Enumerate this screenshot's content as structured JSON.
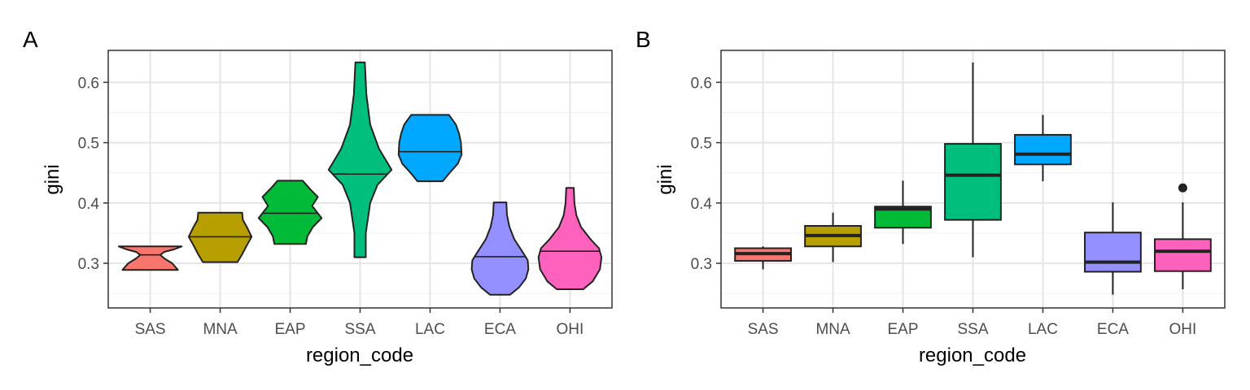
{
  "chart_data": [
    {
      "tag": "A",
      "type": "violin",
      "xlabel": "region_code",
      "ylabel": "gini",
      "categories": [
        "SAS",
        "MNA",
        "EAP",
        "SSA",
        "LAC",
        "ECA",
        "OHI"
      ],
      "yticks": [
        "0.3",
        "0.4",
        "0.5",
        "0.6"
      ],
      "ylim": [
        0.226,
        0.653
      ],
      "grid": true,
      "violins": [
        {
          "category": "SAS",
          "color": "#F8766D",
          "median": 0.314,
          "profile": [
            [
              0.289,
              0.88
            ],
            [
              0.3,
              0.7
            ],
            [
              0.308,
              0.45
            ],
            [
              0.314,
              0.32
            ],
            [
              0.319,
              0.45
            ],
            [
              0.323,
              0.75
            ],
            [
              0.328,
              1.0
            ]
          ]
        },
        {
          "category": "MNA",
          "color": "#B79F00",
          "median": 0.344,
          "profile": [
            [
              0.302,
              0.55
            ],
            [
              0.315,
              0.7
            ],
            [
              0.33,
              0.85
            ],
            [
              0.344,
              1.0
            ],
            [
              0.36,
              0.85
            ],
            [
              0.372,
              0.72
            ],
            [
              0.384,
              0.7
            ]
          ]
        },
        {
          "category": "EAP",
          "color": "#00BA38",
          "median": 0.383,
          "profile": [
            [
              0.332,
              0.5
            ],
            [
              0.345,
              0.55
            ],
            [
              0.36,
              0.72
            ],
            [
              0.375,
              1.0
            ],
            [
              0.385,
              0.85
            ],
            [
              0.395,
              0.7
            ],
            [
              0.41,
              0.88
            ],
            [
              0.425,
              0.6
            ],
            [
              0.437,
              0.4
            ]
          ]
        },
        {
          "category": "SSA",
          "color": "#00BF7D",
          "median": 0.448,
          "profile": [
            [
              0.31,
              0.18
            ],
            [
              0.35,
              0.18
            ],
            [
              0.4,
              0.32
            ],
            [
              0.43,
              0.55
            ],
            [
              0.455,
              1.0
            ],
            [
              0.49,
              0.6
            ],
            [
              0.53,
              0.32
            ],
            [
              0.58,
              0.2
            ],
            [
              0.633,
              0.15
            ]
          ]
        },
        {
          "category": "LAC",
          "color": "#00A9FF",
          "median": 0.485,
          "profile": [
            [
              0.436,
              0.4
            ],
            [
              0.45,
              0.62
            ],
            [
              0.465,
              0.88
            ],
            [
              0.48,
              1.0
            ],
            [
              0.5,
              0.98
            ],
            [
              0.515,
              0.92
            ],
            [
              0.53,
              0.82
            ],
            [
              0.546,
              0.6
            ]
          ]
        },
        {
          "category": "ECA",
          "color": "#9590FF",
          "median": 0.311,
          "profile": [
            [
              0.248,
              0.32
            ],
            [
              0.26,
              0.6
            ],
            [
              0.275,
              0.82
            ],
            [
              0.29,
              0.9
            ],
            [
              0.305,
              0.88
            ],
            [
              0.32,
              0.7
            ],
            [
              0.34,
              0.45
            ],
            [
              0.36,
              0.3
            ],
            [
              0.38,
              0.22
            ],
            [
              0.401,
              0.2
            ]
          ]
        },
        {
          "category": "OHI",
          "color": "#FF62BC",
          "median": 0.32,
          "profile": [
            [
              0.257,
              0.42
            ],
            [
              0.27,
              0.72
            ],
            [
              0.29,
              0.95
            ],
            [
              0.31,
              1.0
            ],
            [
              0.325,
              0.92
            ],
            [
              0.34,
              0.65
            ],
            [
              0.36,
              0.35
            ],
            [
              0.38,
              0.2
            ],
            [
              0.4,
              0.14
            ],
            [
              0.425,
              0.12
            ]
          ]
        }
      ]
    },
    {
      "tag": "B",
      "type": "box",
      "xlabel": "region_code",
      "ylabel": "gini",
      "categories": [
        "SAS",
        "MNA",
        "EAP",
        "SSA",
        "LAC",
        "ECA",
        "OHI"
      ],
      "yticks": [
        "0.3",
        "0.4",
        "0.5",
        "0.6"
      ],
      "ylim": [
        0.226,
        0.653
      ],
      "grid": true,
      "boxes": [
        {
          "category": "SAS",
          "color": "#F8766D",
          "whisker_low": 0.29,
          "q1": 0.304,
          "median": 0.316,
          "q3": 0.325,
          "whisker_high": 0.328,
          "outliers": []
        },
        {
          "category": "MNA",
          "color": "#B79F00",
          "whisker_low": 0.302,
          "q1": 0.328,
          "median": 0.346,
          "q3": 0.362,
          "whisker_high": 0.384,
          "outliers": []
        },
        {
          "category": "EAP",
          "color": "#00BA38",
          "whisker_low": 0.332,
          "q1": 0.359,
          "median": 0.39,
          "q3": 0.394,
          "whisker_high": 0.437,
          "outliers": []
        },
        {
          "category": "SSA",
          "color": "#00BF7D",
          "whisker_low": 0.31,
          "q1": 0.372,
          "median": 0.446,
          "q3": 0.498,
          "whisker_high": 0.633,
          "outliers": []
        },
        {
          "category": "LAC",
          "color": "#00A9FF",
          "whisker_low": 0.436,
          "q1": 0.464,
          "median": 0.481,
          "q3": 0.513,
          "whisker_high": 0.546,
          "outliers": []
        },
        {
          "category": "ECA",
          "color": "#9590FF",
          "whisker_low": 0.248,
          "q1": 0.286,
          "median": 0.302,
          "q3": 0.351,
          "whisker_high": 0.401,
          "outliers": []
        },
        {
          "category": "OHI",
          "color": "#FF62BC",
          "whisker_low": 0.257,
          "q1": 0.287,
          "median": 0.32,
          "q3": 0.34,
          "whisker_high": 0.401,
          "outliers": [
            0.425
          ]
        }
      ]
    }
  ]
}
